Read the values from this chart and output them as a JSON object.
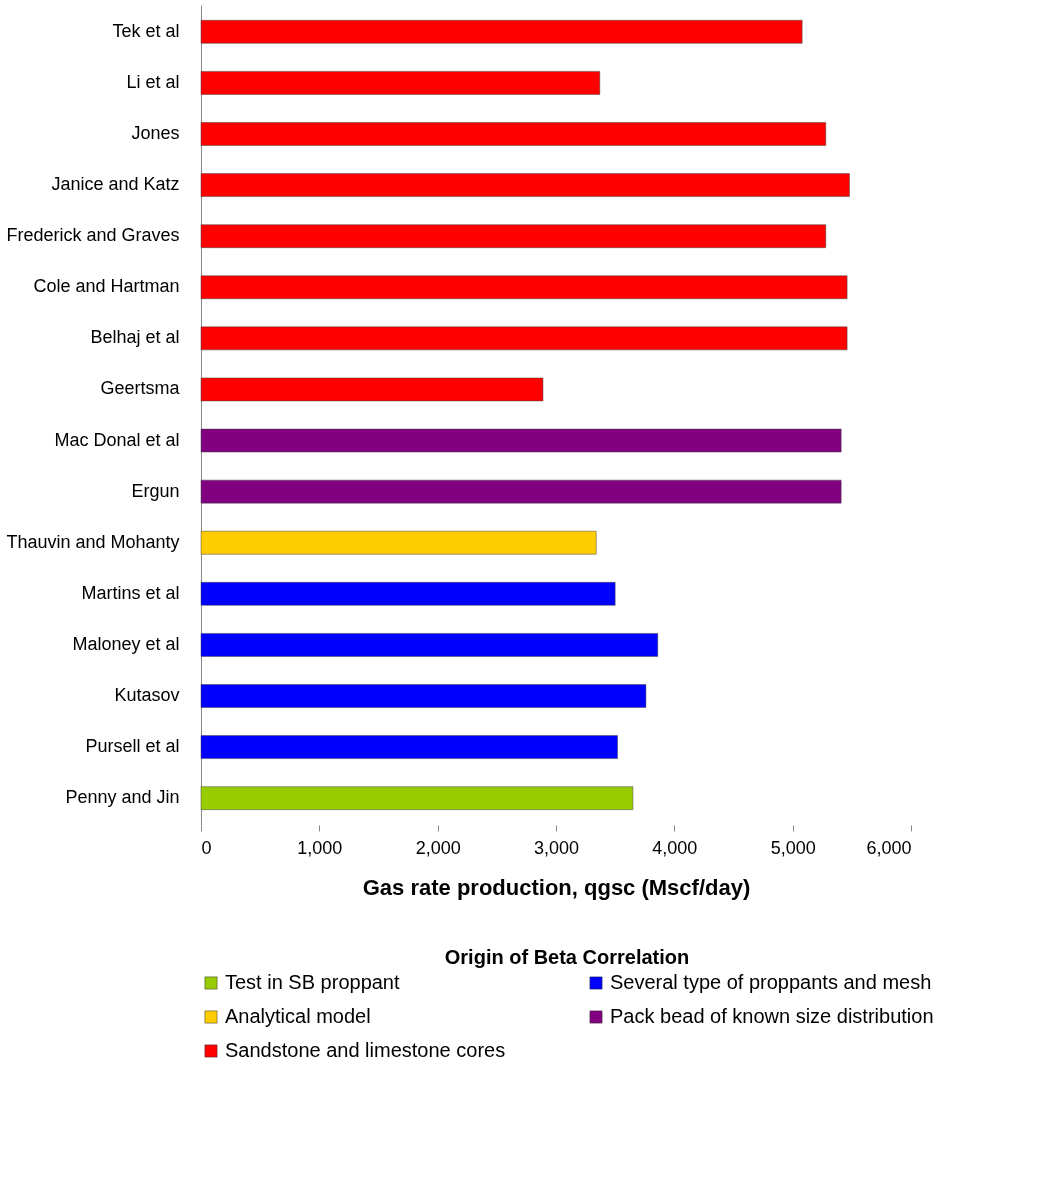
{
  "chart_data": {
    "type": "bar",
    "orientation": "horizontal",
    "categories": [
      "Tek et al",
      "Li et al",
      "Jones",
      "Janice and Katz",
      "Frederick and Graves",
      "Cole  and Hartman",
      "Belhaj et al",
      "Geertsma",
      "Mac Donal et al",
      "Ergun",
      "Thauvin and Mohanty",
      "Martins et al",
      "Maloney et al",
      "Kutasov",
      "Pursell et al",
      "Penny and  Jin"
    ],
    "series": [
      {
        "name": "Test in SB proppant",
        "color": "#99cc00",
        "values": [
          null,
          null,
          null,
          null,
          null,
          null,
          null,
          null,
          null,
          null,
          null,
          null,
          null,
          null,
          null,
          3650
        ]
      },
      {
        "name": "Several type of proppants and mesh",
        "color": "#0000ff",
        "values": [
          null,
          null,
          null,
          null,
          null,
          null,
          null,
          null,
          null,
          null,
          null,
          3500,
          3860,
          3760,
          3520,
          null
        ]
      },
      {
        "name": "Analytical model",
        "color": "#ffcc00",
        "values": [
          null,
          null,
          null,
          null,
          null,
          null,
          null,
          null,
          null,
          null,
          3340,
          null,
          null,
          null,
          null,
          null
        ]
      },
      {
        "name": "Pack bead of known size distribution",
        "color": "#800080",
        "values": [
          null,
          null,
          null,
          null,
          null,
          null,
          null,
          null,
          5410,
          5410,
          null,
          null,
          null,
          null,
          null,
          null
        ]
      },
      {
        "name": "Sandstone and limestone cores",
        "color": "#ff0000",
        "values": [
          5080,
          3370,
          5280,
          5480,
          5280,
          5460,
          5460,
          2890,
          null,
          null,
          null,
          null,
          null,
          null,
          null,
          null
        ]
      }
    ],
    "xlabel": "Gas rate production, qgsc (Mscf/day)",
    "legend_title": "Origin of Beta Correlation",
    "legend": "bottom",
    "grid": false,
    "xlim": [
      0,
      6000
    ],
    "xticks": [
      0,
      {
        "value": 1000,
        "label": "1,000"
      },
      {
        "value": 2000,
        "label": "2,000"
      },
      {
        "value": 3000,
        "label": "3,000"
      },
      {
        "value": 4000,
        "label": "4,000"
      },
      {
        "value": 5000,
        "label": "5,000"
      },
      {
        "value": 6000,
        "label": "6,000"
      }
    ]
  }
}
